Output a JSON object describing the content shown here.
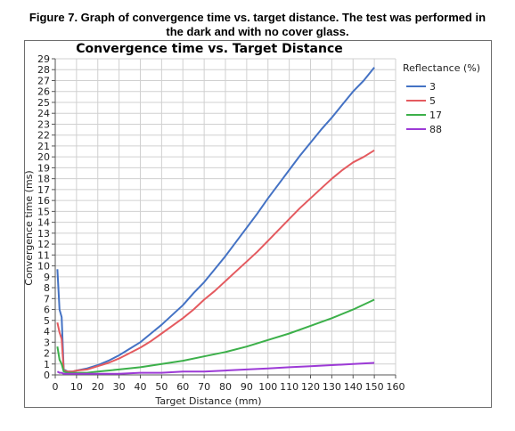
{
  "figure": {
    "caption_line1": "Figure 7. Graph of convergence time vs. target distance. The test was performed in",
    "caption_line2": "the dark and with no cover glass."
  },
  "chart_data": {
    "type": "line",
    "title": "Convergence time vs. Target Distance",
    "xlabel": "Target Distance (mm)",
    "ylabel": "Convergence time (ms)",
    "xlim": [
      0,
      160
    ],
    "ylim": [
      0,
      29
    ],
    "xticks": [
      0,
      10,
      20,
      30,
      40,
      50,
      60,
      70,
      80,
      90,
      100,
      110,
      120,
      130,
      140,
      150,
      160
    ],
    "yticks": [
      0,
      1,
      2,
      3,
      4,
      5,
      6,
      7,
      8,
      9,
      10,
      11,
      12,
      13,
      14,
      15,
      16,
      17,
      18,
      19,
      20,
      21,
      22,
      23,
      24,
      25,
      26,
      27,
      28,
      29
    ],
    "grid": true,
    "legend": {
      "title": "Reflectance (%)",
      "placement": "right"
    },
    "series": [
      {
        "name": "3",
        "color": "#4472c4",
        "x": [
          1,
          2,
          3,
          4,
          6,
          8,
          10,
          15,
          20,
          25,
          30,
          35,
          40,
          45,
          50,
          55,
          60,
          65,
          70,
          75,
          80,
          85,
          90,
          95,
          100,
          105,
          110,
          115,
          120,
          125,
          130,
          135,
          140,
          145,
          150
        ],
        "y": [
          9.7,
          6.0,
          5.3,
          0.5,
          0.3,
          0.3,
          0.4,
          0.6,
          0.9,
          1.3,
          1.8,
          2.4,
          3.0,
          3.8,
          4.6,
          5.5,
          6.4,
          7.5,
          8.5,
          9.7,
          10.9,
          12.2,
          13.5,
          14.8,
          16.2,
          17.5,
          18.8,
          20.1,
          21.3,
          22.5,
          23.6,
          24.8,
          26.0,
          27.0,
          28.2
        ]
      },
      {
        "name": "5",
        "color": "#e45a5f",
        "x": [
          1,
          2,
          3,
          4,
          6,
          8,
          10,
          15,
          20,
          25,
          30,
          35,
          40,
          45,
          50,
          55,
          60,
          65,
          70,
          75,
          80,
          85,
          90,
          95,
          100,
          105,
          110,
          115,
          120,
          125,
          130,
          135,
          140,
          145,
          150
        ],
        "y": [
          4.8,
          3.9,
          3.3,
          0.4,
          0.3,
          0.3,
          0.4,
          0.5,
          0.8,
          1.1,
          1.5,
          2.0,
          2.5,
          3.1,
          3.8,
          4.5,
          5.2,
          6.0,
          6.9,
          7.7,
          8.6,
          9.5,
          10.4,
          11.3,
          12.3,
          13.3,
          14.3,
          15.3,
          16.2,
          17.1,
          18.0,
          18.8,
          19.5,
          20.0,
          20.6
        ]
      },
      {
        "name": "17",
        "color": "#3cb04a",
        "x": [
          1,
          2,
          3,
          4,
          6,
          8,
          10,
          15,
          20,
          25,
          30,
          40,
          50,
          60,
          70,
          80,
          90,
          100,
          110,
          120,
          130,
          140,
          150
        ],
        "y": [
          2.6,
          1.4,
          1.0,
          0.3,
          0.2,
          0.2,
          0.2,
          0.2,
          0.3,
          0.4,
          0.5,
          0.7,
          1.0,
          1.3,
          1.7,
          2.1,
          2.6,
          3.2,
          3.8,
          4.5,
          5.2,
          6.0,
          6.9
        ]
      },
      {
        "name": "88",
        "color": "#9c3ad6",
        "x": [
          1,
          2,
          3,
          4,
          6,
          10,
          20,
          30,
          40,
          50,
          60,
          70,
          80,
          90,
          100,
          110,
          120,
          130,
          140,
          150
        ],
        "y": [
          0.3,
          0.2,
          0.2,
          0.1,
          0.1,
          0.1,
          0.1,
          0.1,
          0.2,
          0.2,
          0.3,
          0.3,
          0.4,
          0.5,
          0.6,
          0.7,
          0.8,
          0.9,
          1.0,
          1.1
        ]
      }
    ]
  }
}
